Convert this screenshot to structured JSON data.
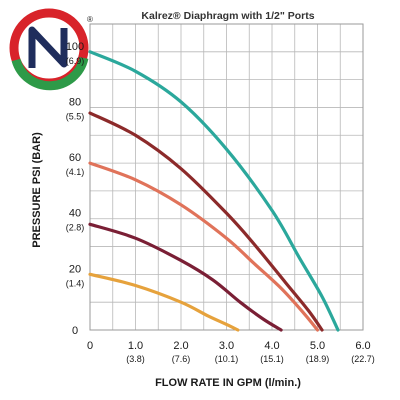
{
  "logo": {
    "letter": "N",
    "registered_mark": "®",
    "colors": {
      "red": "#d8232a",
      "green": "#2e9a48",
      "navy": "#1f2d5c"
    }
  },
  "chart_data": {
    "type": "line",
    "title": "Kalrez® Diaphragm with 1/2\" Ports",
    "xlabel": "FLOW RATE IN GPM (l/min.)",
    "ylabel": "PRESSURE PSI (BAR)",
    "xlim": [
      0,
      6
    ],
    "ylim": [
      0,
      110
    ],
    "grid": true,
    "legend": "none",
    "x_ticks": [
      {
        "value": 0,
        "label": "0",
        "sub": ""
      },
      {
        "value": 1,
        "label": "1.0",
        "sub": "(3.8)"
      },
      {
        "value": 2,
        "label": "2.0",
        "sub": "(7.6)"
      },
      {
        "value": 3,
        "label": "3.0",
        "sub": "(10.1)"
      },
      {
        "value": 4,
        "label": "4.0",
        "sub": "(15.1)"
      },
      {
        "value": 5,
        "label": "5.0",
        "sub": "(18.9)"
      },
      {
        "value": 6,
        "label": "6.0",
        "sub": "(22.7)"
      }
    ],
    "y_ticks": [
      {
        "value": 0,
        "label": "0",
        "sub": ""
      },
      {
        "value": 20,
        "label": "20",
        "sub": "(1.4)"
      },
      {
        "value": 40,
        "label": "40",
        "sub": "(2.8)"
      },
      {
        "value": 60,
        "label": "60",
        "sub": "(4.1)"
      },
      {
        "value": 80,
        "label": "80",
        "sub": "(5.5)"
      },
      {
        "value": 100,
        "label": "100",
        "sub": "(6.9)"
      }
    ],
    "series": [
      {
        "color": "#2ba89c",
        "x": [
          0,
          1,
          2,
          3,
          4,
          4.6,
          5.1,
          5.45
        ],
        "y": [
          100,
          93,
          82,
          65,
          43,
          26,
          12,
          0
        ]
      },
      {
        "color": "#8c2a2a",
        "x": [
          0,
          1,
          2,
          3,
          3.6,
          4.3,
          4.8,
          5.1
        ],
        "y": [
          78,
          70,
          58,
          42,
          31,
          17,
          7,
          0
        ]
      },
      {
        "color": "#e0735a",
        "x": [
          0,
          1,
          2,
          3,
          3.6,
          4.2,
          4.7,
          5.0
        ],
        "y": [
          60,
          54,
          45,
          33,
          24,
          15,
          6,
          0
        ]
      },
      {
        "color": "#7a1f35",
        "x": [
          0,
          1,
          2,
          2.7,
          3.3,
          3.8,
          4.2
        ],
        "y": [
          38,
          33,
          25,
          18,
          10,
          4,
          0
        ]
      },
      {
        "color": "#e6a23c",
        "x": [
          0,
          1,
          2,
          2.6,
          3.0,
          3.25
        ],
        "y": [
          20,
          16,
          10,
          5,
          2,
          0
        ]
      }
    ]
  }
}
